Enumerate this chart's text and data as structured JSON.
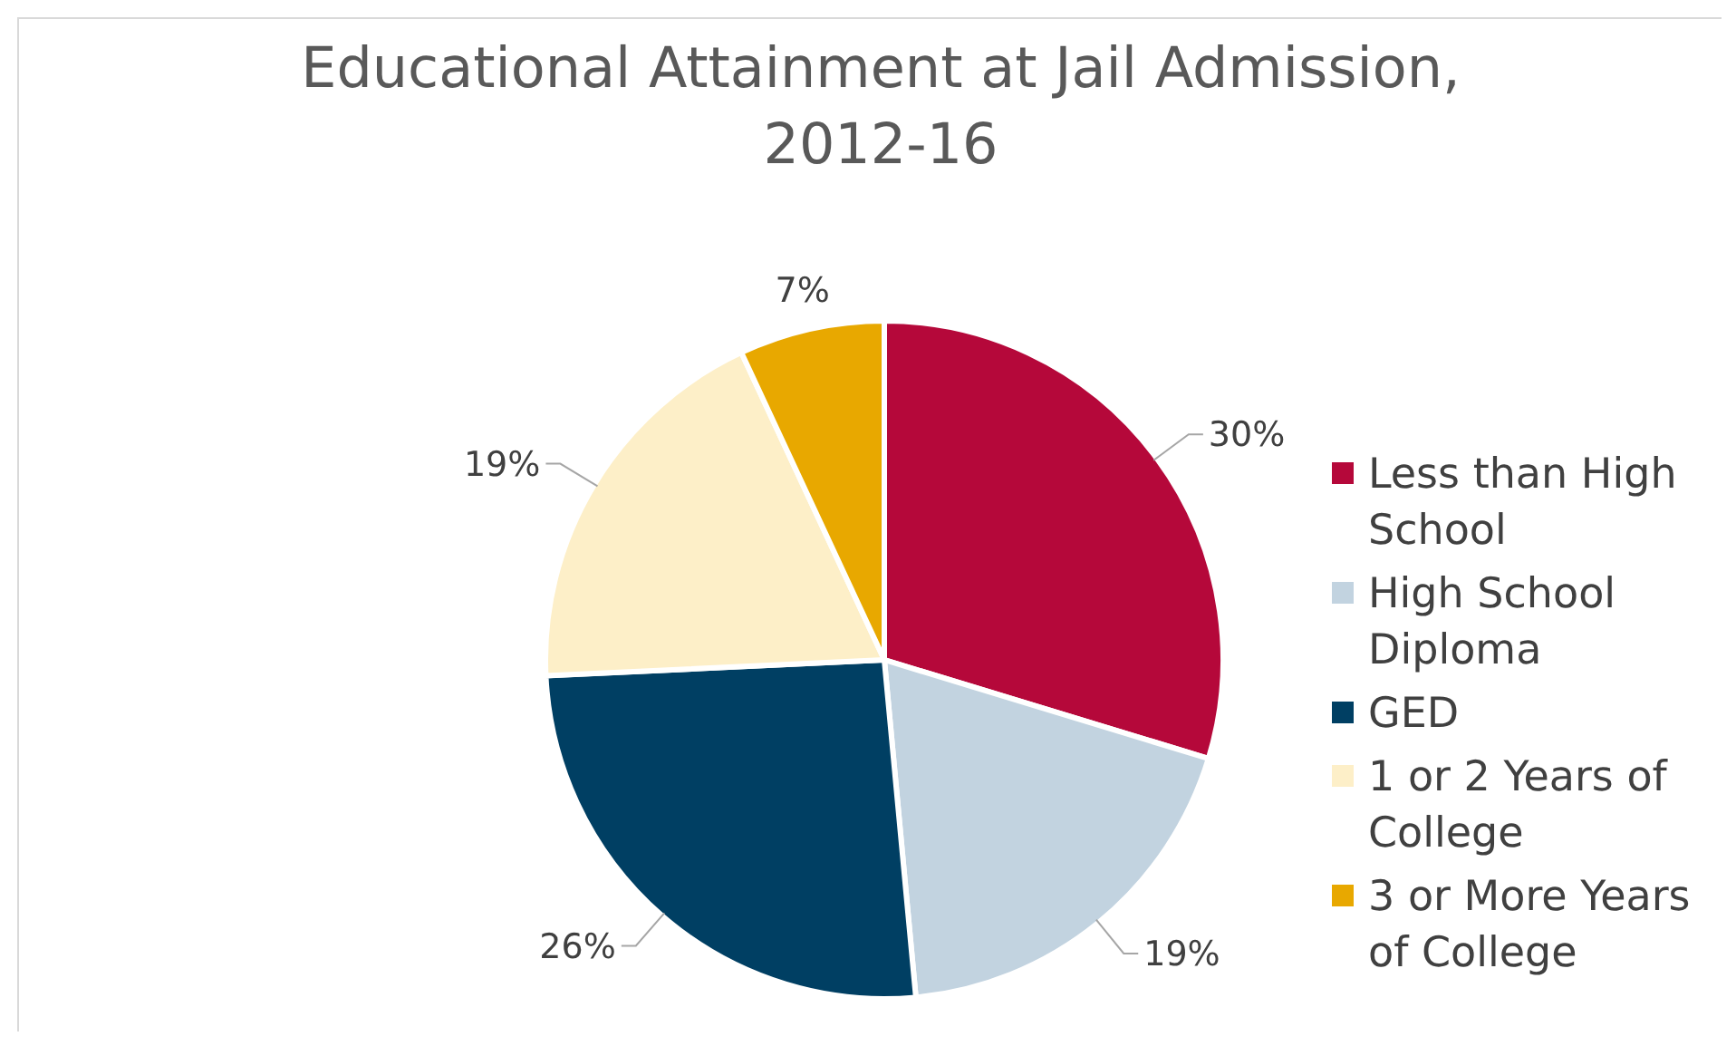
{
  "chart_data": {
    "type": "pie",
    "title": "Educational Attainment at Jail Admission, 2012-16",
    "categories": [
      "Less than High School",
      "High School Diploma",
      "GED",
      "1 or 2 Years of College",
      "3 or More Years of College"
    ],
    "values": [
      30,
      19,
      26,
      19,
      7
    ],
    "colors": [
      "#b5083a",
      "#c2d3e0",
      "#003f63",
      "#fdefc8",
      "#e8a800"
    ],
    "value_labels": [
      "30%",
      "19%",
      "26%",
      "19%",
      "7%"
    ],
    "legend": "right"
  }
}
